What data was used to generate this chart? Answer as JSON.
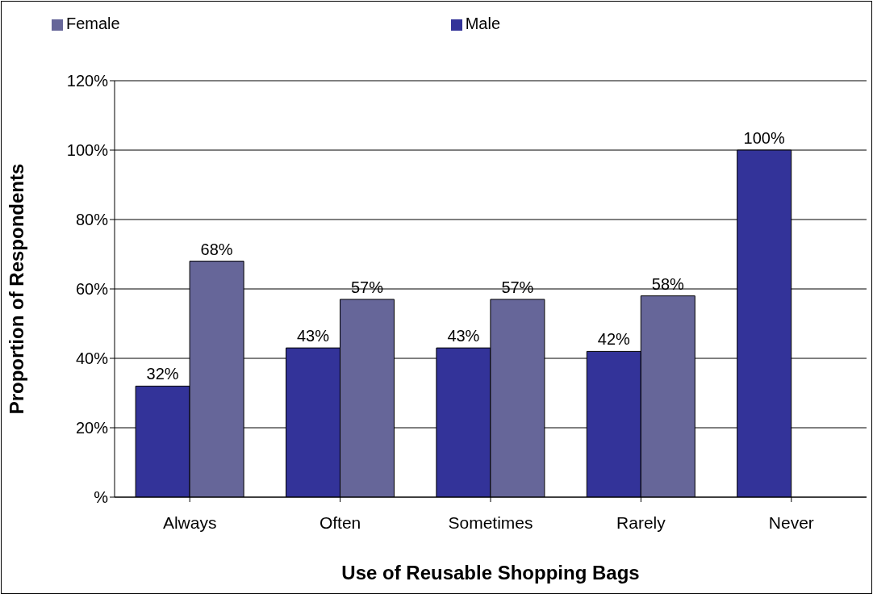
{
  "chart_data": {
    "type": "bar",
    "xlabel": "Use of Reusable Shopping Bags",
    "ylabel": "Proportion of Respondents",
    "categories": [
      "Always",
      "Often",
      "Sometimes",
      "Rarely",
      "Never"
    ],
    "series": [
      {
        "name": "Male",
        "color": "#333399",
        "values": [
          32,
          43,
          43,
          42,
          100
        ],
        "value_labels": [
          "32%",
          "43%",
          "43%",
          "42%",
          "100%"
        ]
      },
      {
        "name": "Female",
        "color": "#666699",
        "values": [
          68,
          57,
          57,
          58,
          null
        ],
        "value_labels": [
          "68%",
          "57%",
          "57%",
          "58%",
          null
        ]
      }
    ],
    "ylim": [
      0,
      120
    ],
    "yticks": [
      {
        "value": 0,
        "label": "%"
      },
      {
        "value": 20,
        "label": "20%"
      },
      {
        "value": 40,
        "label": "40%"
      },
      {
        "value": 60,
        "label": "60%"
      },
      {
        "value": 80,
        "label": "80%"
      },
      {
        "value": 100,
        "label": "100%"
      },
      {
        "value": 120,
        "label": "120%"
      }
    ],
    "grid": "y",
    "legend": "top"
  }
}
